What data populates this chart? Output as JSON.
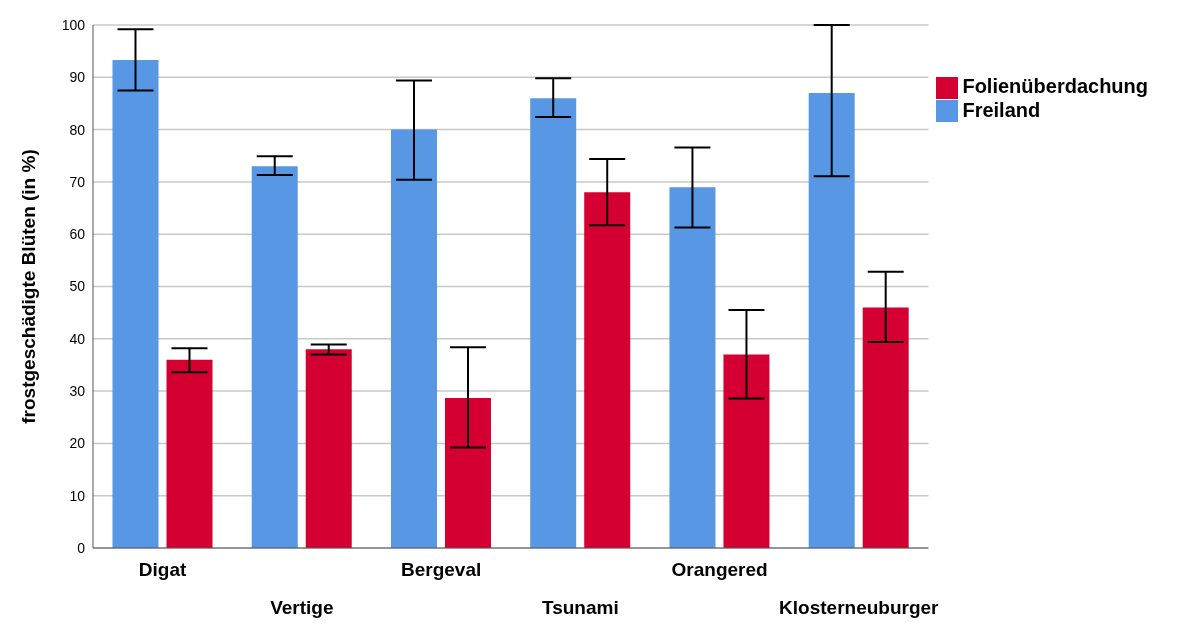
{
  "chart_data": {
    "type": "bar",
    "ylabel": "frostgeschädigte Blüten (in %)",
    "categories": [
      "Digat",
      "Vertige",
      "Bergeval",
      "Tsunami",
      "Orangered",
      "Klosterneuburger"
    ],
    "series": [
      {
        "name": "Freiland",
        "color": "#5797e3",
        "values": [
          93.3,
          73,
          80,
          86,
          69,
          87
        ],
        "errors": [
          [
            87.5,
            99.2
          ],
          [
            71.3,
            74.9
          ],
          [
            70.4,
            89.4
          ],
          [
            82.4,
            89.8
          ],
          [
            61.3,
            76.6
          ],
          [
            71.1,
            100
          ]
        ]
      },
      {
        "name": "Folienüberdachung",
        "color": "#d50032",
        "values": [
          36,
          38,
          28.7,
          68,
          37,
          46
        ],
        "errors": [
          [
            33.6,
            38.2
          ],
          [
            37,
            38.9
          ],
          [
            19.2,
            38.4
          ],
          [
            61.7,
            74.4
          ],
          [
            28.6,
            45.5
          ],
          [
            39.4,
            52.8
          ]
        ]
      }
    ],
    "ylim": [
      0,
      100
    ],
    "yticks": [
      0,
      10,
      20,
      30,
      40,
      50,
      60,
      70,
      80,
      90,
      100
    ],
    "grid": "y",
    "legend": "top right"
  }
}
